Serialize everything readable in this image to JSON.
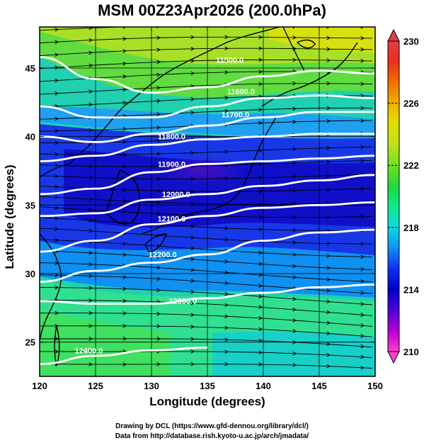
{
  "title": "MSM 00Z23Apr2026 (200.0hPa)",
  "xlabel": "Longitude (degrees)",
  "ylabel": "Latitude  (degrees)",
  "credits": [
    "Drawing by DCL (https://www.gfd-dennou.org/library/dcl/)",
    "Data from http://database.rish.kyoto-u.ac.jp/arch/jmadata/"
  ],
  "chart_data": {
    "type": "heatmap",
    "x_ticks": [
      120,
      125,
      130,
      135,
      140,
      145,
      150
    ],
    "y_ticks": [
      25,
      30,
      35,
      40,
      45
    ],
    "xlim": [
      120,
      150
    ],
    "ylim": [
      22.5,
      48
    ],
    "colorbar": {
      "range": [
        210,
        230
      ],
      "ticks": [
        210,
        214,
        218,
        222,
        226,
        230
      ],
      "colors": [
        "#ff40d0",
        "#b000d0",
        "#5000d8",
        "#0000c8",
        "#1030f0",
        "#1090f0",
        "#10d8e0",
        "#10e890",
        "#20d840",
        "#70e020",
        "#c0e020",
        "#e0e000",
        "#f0b000",
        "#f07000",
        "#e83020",
        "#e04040"
      ]
    },
    "contours": [
      {
        "label": "11500.0",
        "points": [
          [
            120,
            45.8
          ],
          [
            125,
            44.2
          ],
          [
            130,
            43.2
          ],
          [
            135,
            43.6
          ],
          [
            140,
            44.4
          ],
          [
            145,
            44.8
          ],
          [
            150,
            44.6
          ]
        ],
        "label_lon": 137,
        "label_lat": 45.6
      },
      {
        "label": "11600.0",
        "points": [
          [
            120,
            42.2
          ],
          [
            125,
            41.4
          ],
          [
            130,
            41.4
          ],
          [
            135,
            42.2
          ],
          [
            140,
            42.8
          ],
          [
            145,
            43.0
          ],
          [
            150,
            42.8
          ]
        ],
        "label_lon": 138,
        "label_lat": 43.3
      },
      {
        "label": "11700.0",
        "points": [
          [
            120,
            40.0
          ],
          [
            125,
            39.6
          ],
          [
            130,
            40.2
          ],
          [
            135,
            40.8
          ],
          [
            140,
            41.4
          ],
          [
            145,
            41.8
          ],
          [
            150,
            41.8
          ]
        ],
        "label_lon": 137.5,
        "label_lat": 41.6
      },
      {
        "label": "11800.0",
        "points": [
          [
            120,
            38.2
          ],
          [
            125,
            38.6
          ],
          [
            130,
            39.4
          ],
          [
            135,
            39.8
          ],
          [
            140,
            40.0
          ],
          [
            145,
            40.2
          ],
          [
            150,
            40.2
          ]
        ],
        "label_lon": 131.8,
        "label_lat": 40.0
      },
      {
        "label": "11900.0",
        "points": [
          [
            120,
            35.8
          ],
          [
            125,
            36.2
          ],
          [
            130,
            37.4
          ],
          [
            135,
            38.0
          ],
          [
            140,
            38.2
          ],
          [
            145,
            38.4
          ],
          [
            150,
            38.6
          ]
        ],
        "label_lon": 131.8,
        "label_lat": 38.0
      },
      {
        "label": "12000.0",
        "points": [
          [
            120,
            34.2
          ],
          [
            125,
            34.4
          ],
          [
            130,
            35.4
          ],
          [
            135,
            35.8
          ],
          [
            140,
            36.4
          ],
          [
            145,
            36.8
          ],
          [
            150,
            37.2
          ]
        ],
        "label_lon": 132.2,
        "label_lat": 35.8
      },
      {
        "label": "12100.0",
        "points": [
          [
            120,
            31.6
          ],
          [
            125,
            32.4
          ],
          [
            130,
            33.6
          ],
          [
            135,
            34.2
          ],
          [
            140,
            34.8
          ],
          [
            145,
            35.0
          ],
          [
            150,
            35.2
          ]
        ],
        "label_lon": 131.8,
        "label_lat": 34.0
      },
      {
        "label": "12200.0",
        "points": [
          [
            120,
            29.4
          ],
          [
            125,
            30.2
          ],
          [
            130,
            30.8
          ],
          [
            135,
            31.4
          ],
          [
            140,
            32.4
          ],
          [
            145,
            33.0
          ],
          [
            150,
            33.2
          ]
        ],
        "label_lon": 131.0,
        "label_lat": 31.4
      },
      {
        "label": "12300.0",
        "points": [
          [
            120,
            28.0
          ],
          [
            125,
            27.8
          ],
          [
            130,
            27.8
          ],
          [
            135,
            28.2
          ],
          [
            140,
            28.6
          ],
          [
            145,
            29.0
          ],
          [
            150,
            29.2
          ]
        ],
        "label_lon": 132.8,
        "label_lat": 28.0
      },
      {
        "label": "12400.0",
        "points": [
          [
            120,
            23.4
          ],
          [
            125,
            24.0
          ],
          [
            130,
            24.4
          ],
          [
            135,
            24.6
          ]
        ],
        "label_lon": 124.4,
        "label_lat": 24.4
      }
    ]
  }
}
